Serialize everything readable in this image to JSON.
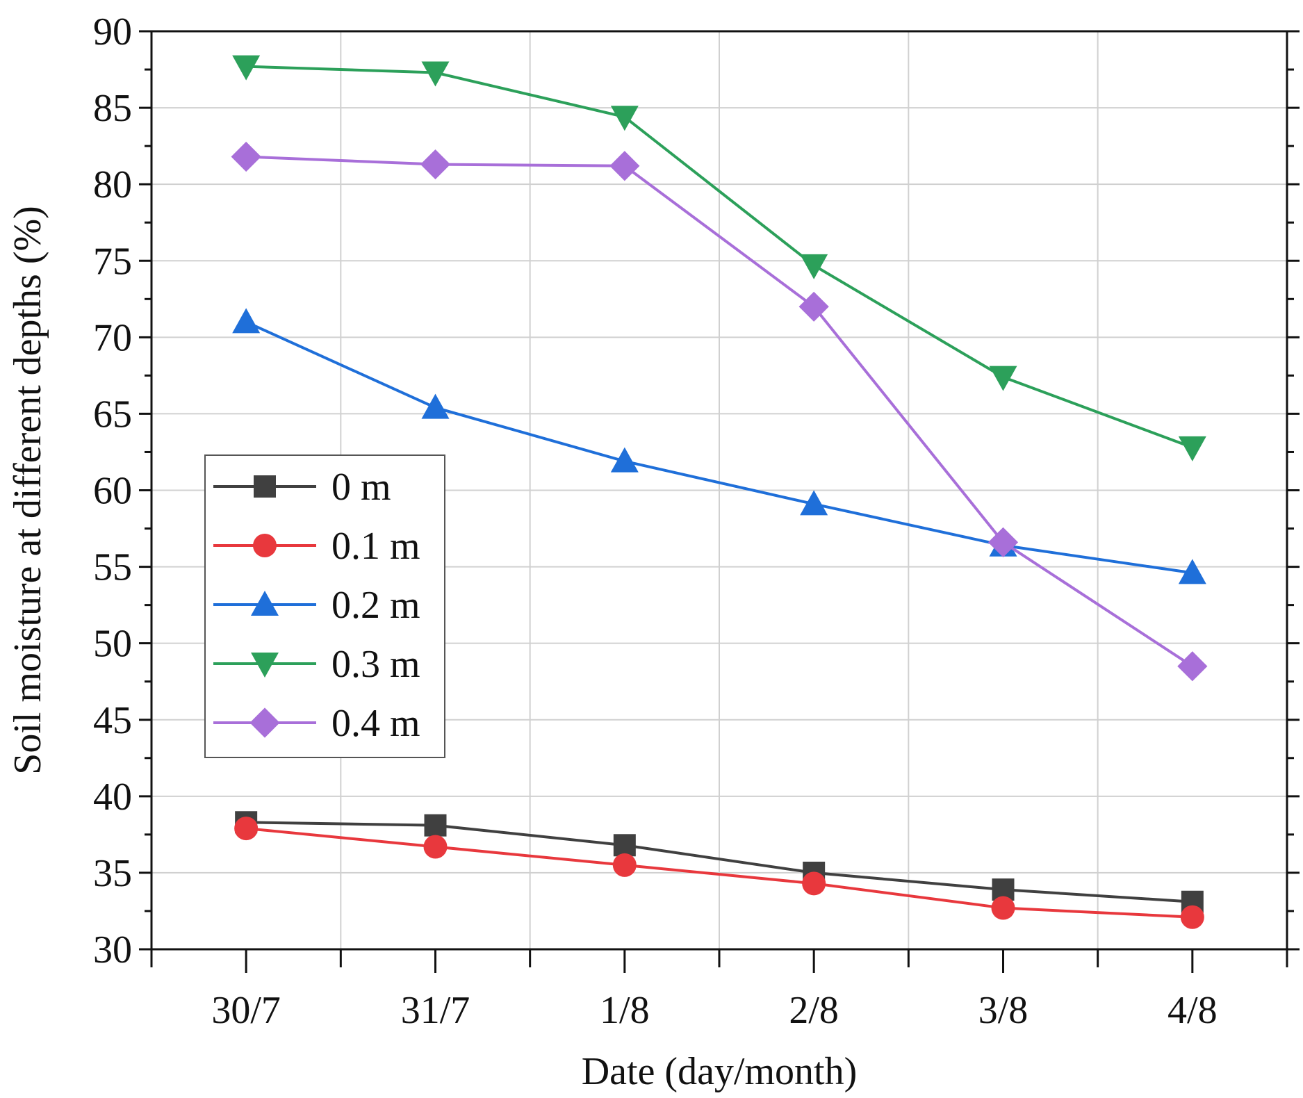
{
  "chart_data": {
    "type": "line",
    "title": "",
    "xlabel": "Date (day/month)",
    "ylabel": "Soil moisture at different depths (%)",
    "categories": [
      "30/7",
      "31/7",
      "1/8",
      "2/8",
      "3/8",
      "4/8"
    ],
    "ylim": [
      30,
      90
    ],
    "yticks": [
      30,
      35,
      40,
      45,
      50,
      55,
      60,
      65,
      70,
      75,
      80,
      85,
      90
    ],
    "grid": true,
    "legend_position": "center-left",
    "series": [
      {
        "name": "0 m",
        "marker": "square",
        "color": "#404040",
        "values": [
          38.3,
          38.1,
          36.8,
          35.0,
          33.9,
          33.1
        ]
      },
      {
        "name": "0.1 m",
        "marker": "circle",
        "color": "#e8383d",
        "values": [
          37.9,
          36.7,
          35.5,
          34.3,
          32.7,
          32.1
        ]
      },
      {
        "name": "0.2 m",
        "marker": "triangle-up",
        "color": "#1f6fd9",
        "values": [
          71.0,
          65.4,
          61.9,
          59.1,
          56.4,
          54.6
        ]
      },
      {
        "name": "0.3 m",
        "marker": "triangle-down",
        "color": "#2ca05a",
        "values": [
          87.7,
          87.3,
          84.4,
          74.7,
          67.4,
          62.8
        ]
      },
      {
        "name": "0.4 m",
        "marker": "diamond",
        "color": "#a86fd9",
        "values": [
          81.8,
          81.3,
          81.2,
          72.0,
          56.6,
          48.5
        ]
      }
    ]
  }
}
